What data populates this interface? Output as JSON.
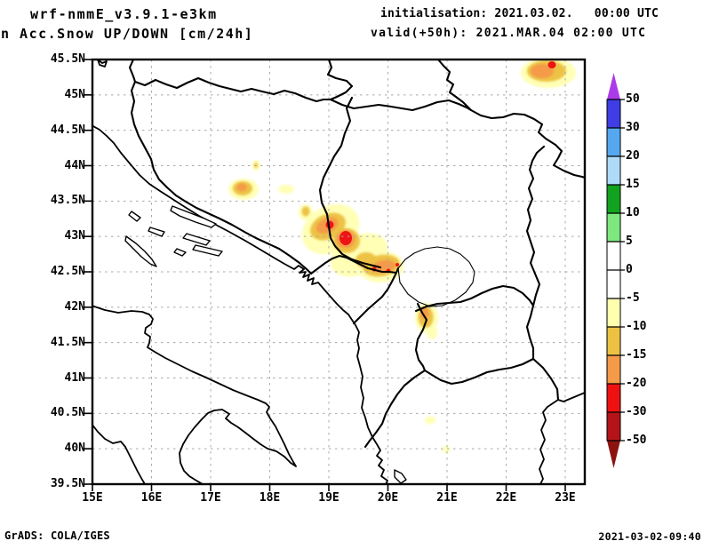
{
  "header": {
    "model_title": "wrf-nmmE_v3.9.1-e3km",
    "field_title": "n Acc.Snow UP/DOWN [cm/24h]",
    "init_line": "initialisation: 2021.03.02.   00:00 UTC",
    "valid_line": "valid(+50h): 2021.MAR.04 02:00 UTC"
  },
  "footer": {
    "credit": "GrADS: COLA/IGES",
    "timestamp": "2021-03-02-09:40"
  },
  "axes": {
    "lat": [
      "45.5N",
      "45N",
      "44.5N",
      "44N",
      "43.5N",
      "43N",
      "42.5N",
      "42N",
      "41.5N",
      "41N",
      "40.5N",
      "40N",
      "39.5N"
    ],
    "lon": [
      "15E",
      "16E",
      "17E",
      "18E",
      "19E",
      "20E",
      "21E",
      "22E",
      "23E"
    ]
  },
  "colorbar": {
    "labels": [
      "50",
      "30",
      "20",
      "15",
      "10",
      "5",
      "0",
      "-5",
      "-10",
      "-15",
      "-20",
      "-30",
      "-50"
    ],
    "segment_colors": [
      "#3e3ee4",
      "#55a8f0",
      "#aedcf8",
      "#12a21f",
      "#7ee87e",
      "#ffffff",
      "#ffffff",
      "#ffffb0",
      "#edc243",
      "#f49a48",
      "#ee1111",
      "#b41418"
    ],
    "arrow_top_color": "#ab3be8",
    "arrow_bottom_color": "#8c1410",
    "units": "cm/24h"
  },
  "map": {
    "grid_color": "#a8a8a8",
    "extent": {
      "lon_min": "15E",
      "lon_max": "23E",
      "lat_min": "39.5N",
      "lat_max": "45.5N"
    },
    "shade_colors": {
      "pale_yellow": "#ffffb6",
      "gold": "#edc244",
      "orange": "#f49a48",
      "red": "#ee1414"
    },
    "snow_maxima": [
      {
        "lon": 22.75,
        "lat": 45.37,
        "level_cm": "-20 to -30"
      },
      {
        "lon": 17.55,
        "lat": 43.67,
        "level_cm": "-15 to -20"
      },
      {
        "lon": 18.6,
        "lat": 43.35,
        "level_cm": "-10 to -15"
      },
      {
        "lon": 19.0,
        "lat": 43.17,
        "level_cm": "-20 to -30"
      },
      {
        "lon": 19.27,
        "lat": 42.98,
        "level_cm": "-30 to -50"
      },
      {
        "lon": 19.9,
        "lat": 42.58,
        "level_cm": "-20 to -30"
      },
      {
        "lon": 20.62,
        "lat": 41.86,
        "level_cm": "-15 to -20"
      }
    ]
  }
}
